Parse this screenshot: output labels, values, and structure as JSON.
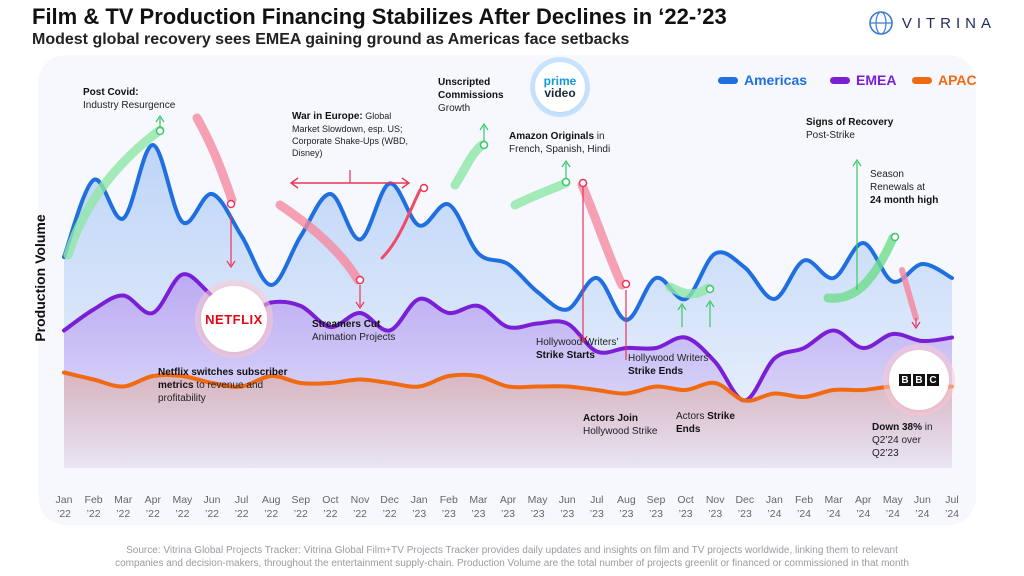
{
  "header": {
    "title": "Film & TV Production Financing Stabilizes After Declines in ‘22-’23",
    "subtitle": "Modest global recovery sees EMEA gaining ground as Americas face setbacks",
    "brand": "VITRINA"
  },
  "legend": [
    {
      "name": "Americas",
      "color": "#1f6fe0"
    },
    {
      "name": "EMEA",
      "color": "#7a1fd6"
    },
    {
      "name": "APAC",
      "color": "#f06a12"
    }
  ],
  "logos": {
    "netflix": "NETFLIX",
    "prime_top": "prime",
    "prime_bottom": "video",
    "bbc": [
      "B",
      "B",
      "C"
    ]
  },
  "annotations": {
    "post_covid": {
      "bold": "Post Covid:",
      "text": "Industry Resurgence"
    },
    "war_europe": {
      "bold": "War in Europe:",
      "lines": [
        "Global",
        "Market Slowdown, esp. US;",
        "Corporate Shake-Ups (WBD,",
        "Disney)"
      ]
    },
    "unscripted": {
      "bold1": "Unscripted",
      "bold2": "Commissions",
      "text": "Growth"
    },
    "amazon": {
      "bold": "Amazon Originals",
      "text1": " in",
      "text2": "French, Spanish, Hindi"
    },
    "recovery": {
      "bold": "Signs of Recovery",
      "text": "Post-Strike"
    },
    "renewals": {
      "line1": "Season",
      "line2": "Renewals at",
      "bold": "24 month high"
    },
    "streamers": {
      "bold": "Streamers Cut",
      "text": "Animation Projects"
    },
    "netflix_metrics": {
      "bold1": "Netflix switches subscriber",
      "bold2": "metrics",
      "text1": " to revenue and",
      "text2": "profitability"
    },
    "writers_start": {
      "text": "Hollywood Writers’",
      "bold": "Strike Starts"
    },
    "writers_end": {
      "text": "Hollywood Writers’",
      "bold": "Strike Ends"
    },
    "actors_join": {
      "bold": "Actors Join",
      "text": "Hollywood Strike"
    },
    "actors_end": {
      "text": "Actors ",
      "bold1": "Strike",
      "bold2": "Ends"
    },
    "bbc_down": {
      "bold": "Down 38%",
      "text1": " in",
      "text2": "Q2’24 over",
      "text3": "Q2’23"
    }
  },
  "source": {
    "line1": "Source: Vitrina Global Projects Tracker: Vitrina Global Film+TV Projects Tracker provides daily updates and insights on film and TV projects worldwide, linking them to relevant",
    "line2": "companies and decision-makers, throughout the entertainment supply-chain. Production Volume are the total number of projects greenlit or financed or commissioned in that month"
  },
  "chart_data": {
    "type": "line",
    "title": "Film & TV Production Financing Stabilizes After Declines in ‘22-’23",
    "ylabel": "Production Volume",
    "xlabel": "",
    "ylim": [
      0,
      100
    ],
    "months": [
      "Jan",
      "Feb",
      "Mar",
      "Apr",
      "May",
      "Jun",
      "Jul",
      "Aug",
      "Sep",
      "Oct",
      "Nov",
      "Dec",
      "Jan",
      "Feb",
      "Mar",
      "Apr",
      "May",
      "Jun",
      "Jul",
      "Aug",
      "Sep",
      "Oct",
      "Nov",
      "Dec",
      "Jan",
      "Feb",
      "Mar",
      "Apr",
      "May",
      "Jun",
      "Jul"
    ],
    "years": [
      "’22",
      "’22",
      "’22",
      "’22",
      "’22",
      "’22",
      "’22",
      "’22",
      "’22",
      "’22",
      "’22",
      "’22",
      "’23",
      "’23",
      "’23",
      "’23",
      "’23",
      "’23",
      "’23",
      "’23",
      "’23",
      "’23",
      "’23",
      "’23",
      "’24",
      "’24",
      "’24",
      "’24",
      "’24",
      "’24",
      "’24"
    ],
    "series": [
      {
        "name": "Americas",
        "color": "#1f6fe0",
        "values": [
          58,
          80,
          69,
          90,
          68,
          76,
          64,
          50,
          64,
          76,
          63,
          79,
          67,
          73,
          59,
          56,
          48,
          43,
          52,
          40,
          52,
          46,
          59,
          55,
          46,
          57,
          52,
          62,
          51,
          56,
          52
        ]
      },
      {
        "name": "EMEA",
        "color": "#7a1fd6",
        "values": [
          37,
          43,
          47,
          42,
          53,
          47,
          41,
          45,
          44,
          38,
          42,
          37,
          46,
          42,
          44,
          38,
          39,
          39,
          31,
          32,
          32,
          35,
          28,
          17,
          29,
          32,
          37,
          32,
          36,
          34,
          35
        ]
      },
      {
        "name": "APAC",
        "color": "#f06a12",
        "values": [
          25,
          23,
          21,
          24,
          24,
          22,
          21,
          24,
          22,
          22,
          23,
          22,
          21,
          24,
          24,
          21,
          21,
          21,
          20,
          19,
          21,
          20,
          22,
          17,
          19,
          18,
          20,
          20,
          21,
          20,
          21
        ]
      }
    ]
  }
}
